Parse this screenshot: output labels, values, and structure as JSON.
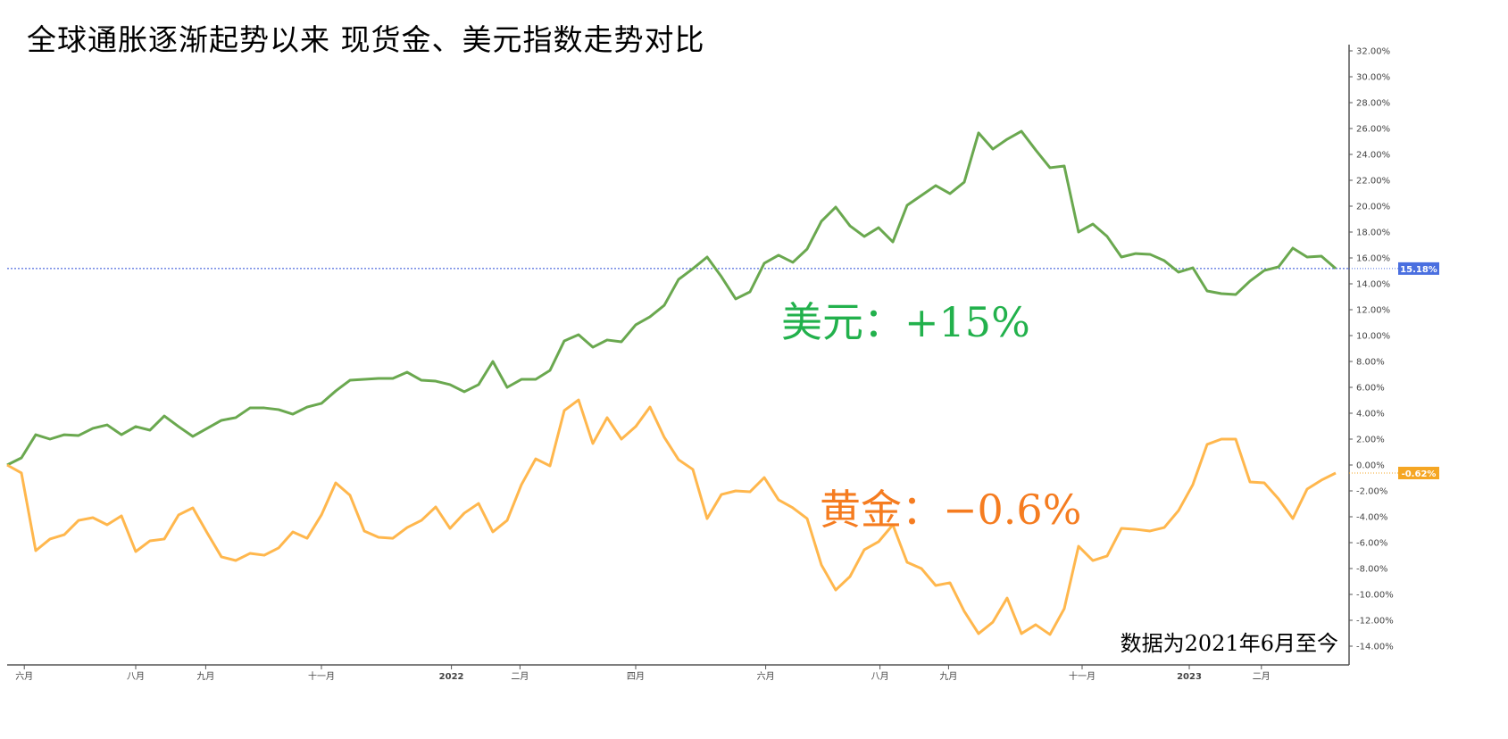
{
  "title": "全球通胀逐渐起势以来 现货金、美元指数走势对比",
  "note": "数据为2021年6月至今",
  "annotations": {
    "usd": "美元：+15%",
    "gold": "黄金：−0.6%"
  },
  "colors": {
    "usd_line": "#6aa84f",
    "gold_line": "#ffb74d",
    "usd_annotation": "#22b14c",
    "gold_annotation": "#f57c20",
    "usd_badge": "#4a6fe0",
    "gold_badge": "#f5a623",
    "ref_line": "#2a4bd7"
  },
  "chart_data": {
    "type": "line",
    "ylim": [
      -15,
      32
    ],
    "yticks": [
      "32.00%",
      "30.00%",
      "28.00%",
      "26.00%",
      "24.00%",
      "22.00%",
      "20.00%",
      "18.00%",
      "16.00%",
      "14.00%",
      "12.00%",
      "10.00%",
      "8.00%",
      "6.00%",
      "4.00%",
      "2.00%",
      "0.00%",
      "-2.00%",
      "-4.00%",
      "-6.00%",
      "-8.00%",
      "-10.00%",
      "-12.00%",
      "-14.00%"
    ],
    "xticks": [
      "六月",
      "八月",
      "九月",
      "十一月",
      "2022",
      "二月",
      "四月",
      "六月",
      "八月",
      "九月",
      "十一月",
      "2023",
      "二月"
    ],
    "grid": false,
    "series": [
      {
        "key": "usd",
        "last_label": "15.18%",
        "values": [
          0,
          0.55,
          2.34,
          2.0,
          2.34,
          2.28,
          2.83,
          3.1,
          2.34,
          2.97,
          2.69,
          3.79,
          2.97,
          2.21,
          2.83,
          3.45,
          3.66,
          4.41,
          4.41,
          4.28,
          3.93,
          4.48,
          4.76,
          5.72,
          6.55,
          6.62,
          6.69,
          6.69,
          7.17,
          6.55,
          6.48,
          6.21,
          5.66,
          6.21,
          8.0,
          6.0,
          6.62,
          6.62,
          7.31,
          9.59,
          10.07,
          9.1,
          9.66,
          9.52,
          10.83,
          11.45,
          12.34,
          14.34,
          15.17,
          16.07,
          14.55,
          12.83,
          13.38,
          15.59,
          16.21,
          15.66,
          16.69,
          18.83,
          19.93,
          18.48,
          17.66,
          18.34,
          17.24,
          20.07,
          20.83,
          21.59,
          20.97,
          21.86,
          25.66,
          24.41,
          25.17,
          25.79,
          24.34,
          22.97,
          23.1,
          18.0,
          18.62,
          17.66,
          16.07,
          16.34,
          16.28,
          15.79,
          14.9,
          15.24,
          13.45,
          13.24,
          13.17,
          14.21,
          15.03,
          15.31,
          16.76,
          16.07,
          16.14,
          15.18
        ]
      },
      {
        "key": "gold",
        "last_label": "-0.62%",
        "values": [
          0,
          -0.62,
          -6.62,
          -5.72,
          -5.38,
          -4.28,
          -4.07,
          -4.62,
          -3.93,
          -6.69,
          -5.86,
          -5.72,
          -3.86,
          -3.31,
          -5.24,
          -7.1,
          -7.38,
          -6.83,
          -6.97,
          -6.41,
          -5.17,
          -5.66,
          -3.86,
          -1.38,
          -2.34,
          -5.1,
          -5.59,
          -5.66,
          -4.83,
          -4.28,
          -3.24,
          -4.9,
          -3.72,
          -2.97,
          -5.17,
          -4.28,
          -1.52,
          0.48,
          -0.07,
          4.21,
          5.03,
          1.66,
          3.66,
          2.0,
          2.97,
          4.48,
          2.14,
          0.41,
          -0.34,
          -4.14,
          -2.28,
          -2.0,
          -2.07,
          -0.97,
          -2.69,
          -3.31,
          -4.14,
          -7.72,
          -9.66,
          -8.62,
          -6.55,
          -5.93,
          -4.62,
          -7.52,
          -8.0,
          -9.31,
          -9.1,
          -11.31,
          -13.03,
          -12.14,
          -10.28,
          -13.03,
          -12.34,
          -13.1,
          -11.1,
          -6.28,
          -7.38,
          -7.03,
          -4.9,
          -4.97,
          -5.1,
          -4.83,
          -3.52,
          -1.52,
          1.59,
          2.0,
          2.0,
          -1.31,
          -1.38,
          -2.62,
          -4.14,
          -1.86,
          -1.17,
          -0.62
        ]
      }
    ]
  }
}
